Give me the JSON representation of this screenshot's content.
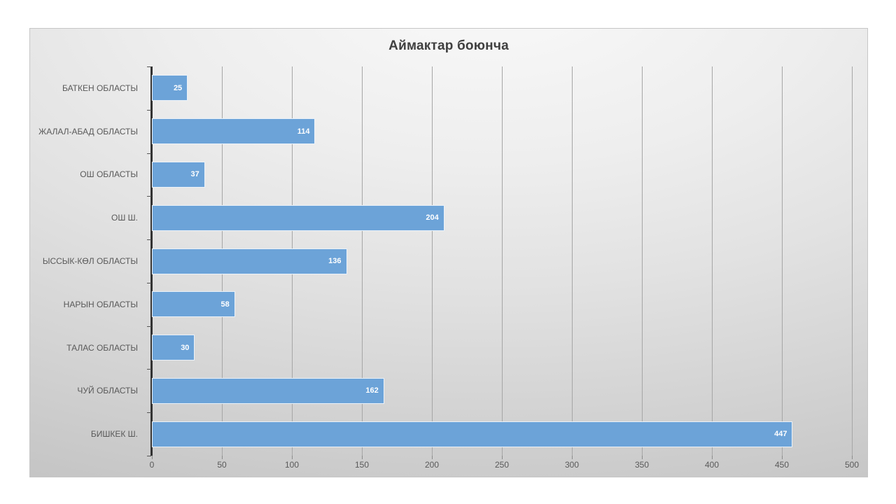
{
  "chart": {
    "colors": {
      "bar_fill": "#6ca3d8",
      "bar_border": "#ffffff",
      "gridline": "#a6a6a6",
      "axis_line": "#333333",
      "title_text": "#3f3f3f",
      "label_text": "#595959",
      "value_text": "#ffffff",
      "background_top": "#f9f9f9",
      "background_bottom": "#c2c2c2"
    }
  },
  "chart_data": {
    "type": "bar",
    "orientation": "horizontal",
    "title": "Аймактар боюнча",
    "xlabel": "",
    "ylabel": "",
    "categories": [
      "БАТКЕН ОБЛАСТЫ",
      "ЖАЛАЛ-АБАД ОБЛАСТЫ",
      "ОШ ОБЛАСТЫ",
      "ОШ Ш.",
      "ЫССЫК-КӨЛ ОБЛАСТЫ",
      "НАРЫН ОБЛАСТЫ",
      "ТАЛАС ОБЛАСТЫ",
      "ЧУЙ ОБЛАСТЫ",
      "БИШКЕК Ш."
    ],
    "values": [
      25,
      114,
      37,
      204,
      136,
      58,
      30,
      162,
      447
    ],
    "xlim": [
      0,
      500
    ],
    "x_ticks": [
      0,
      50,
      100,
      150,
      200,
      250,
      300,
      350,
      400,
      450,
      500
    ],
    "grid": "vertical-major",
    "legend": "none",
    "data_labels": "inside-end"
  }
}
